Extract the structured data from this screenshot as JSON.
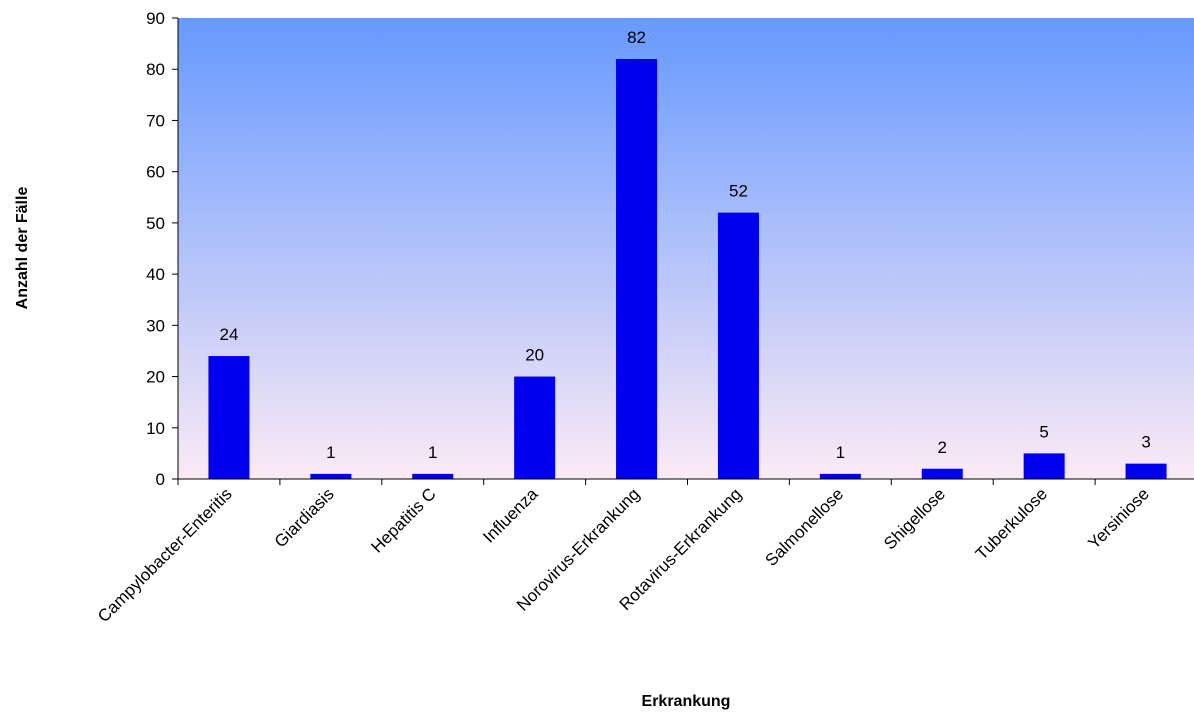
{
  "chart_data": {
    "type": "bar",
    "categories": [
      "Campylobacter-Enteritis",
      "Giardiasis",
      "Hepatitis C",
      "Influenza",
      "Norovirus-Erkrankung",
      "Rotavirus-Erkrankung",
      "Salmonellose",
      "Shigellose",
      "Tuberkulose",
      "Yersiniose"
    ],
    "values": [
      24,
      1,
      1,
      20,
      82,
      52,
      1,
      2,
      5,
      3
    ],
    "data_labels": [
      "24",
      "1",
      "1",
      "20",
      "82",
      "52",
      "1",
      "2",
      "5",
      "3"
    ],
    "xlabel": "Erkrankung",
    "ylabel": "Anzahl der Fälle",
    "ylim": [
      0,
      90
    ],
    "yticks": [
      "0",
      "10",
      "20",
      "30",
      "40",
      "50",
      "60",
      "70",
      "80",
      "90"
    ],
    "grid": false,
    "legend": "none",
    "colors": {
      "bar": "#0000ee",
      "plot_background_top": "#6699ff",
      "plot_background_bottom": "#fbeaf5",
      "axis": "#000000"
    }
  }
}
